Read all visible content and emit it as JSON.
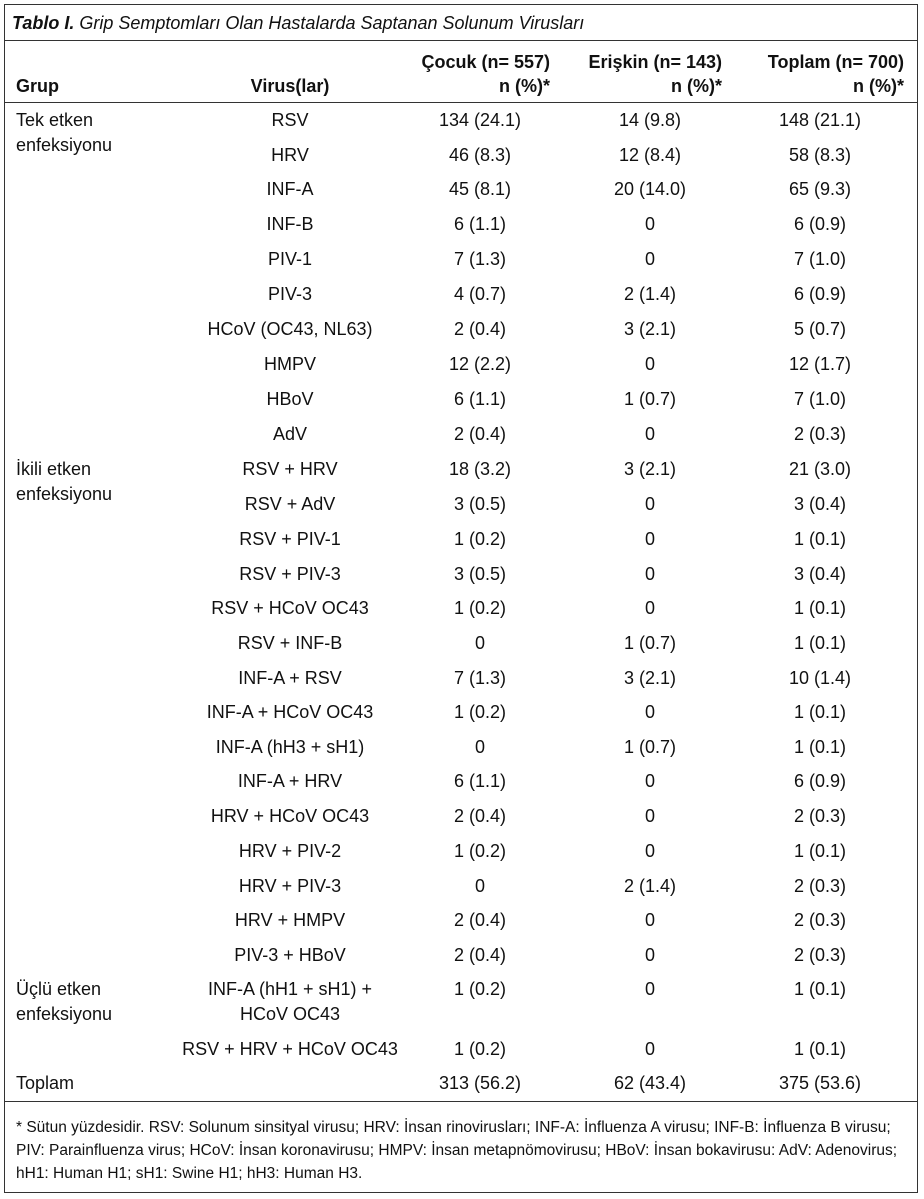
{
  "caption": {
    "label": "Tablo I.",
    "text": "Grip Semptomları Olan Hastalarda Saptanan Solunum Virusları"
  },
  "headers": {
    "grup": "Grup",
    "virus": "Virus(lar)",
    "cocuk_line1": "Çocuk  (n= 557)",
    "cocuk_line2": "n (%)*",
    "eriskin_line1": "Erişkin (n= 143)",
    "eriskin_line2": "n (%)*",
    "toplam_line1": "Toplam (n= 700)",
    "toplam_line2": "n (%)*"
  },
  "groups": [
    {
      "label_lines": [
        "Tek etken",
        "enfeksiyonu"
      ]
    },
    {
      "label_lines": [
        "İkili etken",
        "enfeksiyonu"
      ]
    },
    {
      "label_lines": [
        "Üçlü etken",
        "enfeksiyonu"
      ]
    }
  ],
  "rows": [
    {
      "virus": [
        "RSV"
      ],
      "cocuk": "134 (24.1)",
      "eriskin": "14 (9.8)",
      "toplam": "148 (21.1)"
    },
    {
      "virus": [
        "HRV"
      ],
      "cocuk": "46 (8.3)",
      "eriskin": "12 (8.4)",
      "toplam": "58 (8.3)"
    },
    {
      "virus": [
        "INF-A"
      ],
      "cocuk": "45 (8.1)",
      "eriskin": "20 (14.0)",
      "toplam": "65 (9.3)"
    },
    {
      "virus": [
        "INF-B"
      ],
      "cocuk": "6 (1.1)",
      "eriskin": "0",
      "toplam": "6 (0.9)"
    },
    {
      "virus": [
        "PIV-1"
      ],
      "cocuk": "7 (1.3)",
      "eriskin": "0",
      "toplam": "7 (1.0)"
    },
    {
      "virus": [
        "PIV-3"
      ],
      "cocuk": "4 (0.7)",
      "eriskin": "2 (1.4)",
      "toplam": "6 (0.9)"
    },
    {
      "virus": [
        "HCoV (OC43, NL63)"
      ],
      "cocuk": "2 (0.4)",
      "eriskin": "3 (2.1)",
      "toplam": "5 (0.7)"
    },
    {
      "virus": [
        "HMPV"
      ],
      "cocuk": "12 (2.2)",
      "eriskin": "0",
      "toplam": "12 (1.7)"
    },
    {
      "virus": [
        "HBoV"
      ],
      "cocuk": "6 (1.1)",
      "eriskin": "1 (0.7)",
      "toplam": "7 (1.0)"
    },
    {
      "virus": [
        "AdV"
      ],
      "cocuk": "2 (0.4)",
      "eriskin": "0",
      "toplam": "2 (0.3)"
    },
    {
      "virus": [
        "RSV + HRV"
      ],
      "cocuk": "18 (3.2)",
      "eriskin": "3 (2.1)",
      "toplam": "21 (3.0)"
    },
    {
      "virus": [
        "RSV + AdV"
      ],
      "cocuk": "3 (0.5)",
      "eriskin": "0",
      "toplam": "3 (0.4)"
    },
    {
      "virus": [
        "RSV + PIV-1"
      ],
      "cocuk": "1 (0.2)",
      "eriskin": "0",
      "toplam": "1 (0.1)"
    },
    {
      "virus": [
        "RSV + PIV-3"
      ],
      "cocuk": "3 (0.5)",
      "eriskin": "0",
      "toplam": "3 (0.4)"
    },
    {
      "virus": [
        "RSV + HCoV OC43"
      ],
      "cocuk": "1 (0.2)",
      "eriskin": "0",
      "toplam": "1 (0.1)"
    },
    {
      "virus": [
        "RSV + INF-B"
      ],
      "cocuk": "0",
      "eriskin": "1 (0.7)",
      "toplam": "1 (0.1)"
    },
    {
      "virus": [
        "INF-A + RSV"
      ],
      "cocuk": "7 (1.3)",
      "eriskin": "3 (2.1)",
      "toplam": "10 (1.4)"
    },
    {
      "virus": [
        "INF-A + HCoV OC43"
      ],
      "cocuk": "1 (0.2)",
      "eriskin": "0",
      "toplam": "1 (0.1)"
    },
    {
      "virus": [
        "INF-A (hH3 + sH1)"
      ],
      "cocuk": "0",
      "eriskin": "1 (0.7)",
      "toplam": "1 (0.1)"
    },
    {
      "virus": [
        "INF-A + HRV"
      ],
      "cocuk": "6 (1.1)",
      "eriskin": "0",
      "toplam": "6 (0.9)"
    },
    {
      "virus": [
        "HRV + HCoV OC43"
      ],
      "cocuk": "2 (0.4)",
      "eriskin": "0",
      "toplam": "2 (0.3)"
    },
    {
      "virus": [
        "HRV + PIV-2"
      ],
      "cocuk": "1 (0.2)",
      "eriskin": "0",
      "toplam": "1 (0.1)"
    },
    {
      "virus": [
        "HRV + PIV-3"
      ],
      "cocuk": "0",
      "eriskin": "2 (1.4)",
      "toplam": "2 (0.3)"
    },
    {
      "virus": [
        "HRV + HMPV"
      ],
      "cocuk": "2 (0.4)",
      "eriskin": "0",
      "toplam": "2 (0.3)"
    },
    {
      "virus": [
        "PIV-3 + HBoV"
      ],
      "cocuk": "2 (0.4)",
      "eriskin": "0",
      "toplam": "2 (0.3)"
    },
    {
      "virus": [
        "INF-A (hH1 + sH1) +",
        "HCoV OC43"
      ],
      "cocuk": "1 (0.2)",
      "eriskin": "0",
      "toplam": "1 (0.1)"
    },
    {
      "virus": [
        "RSV + HRV + HCoV OC43"
      ],
      "cocuk": "1 (0.2)",
      "eriskin": "0",
      "toplam": "1 (0.1)"
    }
  ],
  "total": {
    "label": "Toplam",
    "cocuk": "313 (56.2)",
    "eriskin": "62 (43.4)",
    "toplam": "375 (53.6)"
  },
  "footnote": "* Sütun yüzdesidir. RSV: Solunum sinsityal virusu; HRV: İnsan rinovirusları; INF-A: İnfluenza A virusu; INF-B: İnfluenza B virusu; PIV: Parainfluenza virus; HCoV: İnsan koronavirusu; HMPV: İnsan metapnömovirusu; HBoV: İnsan bokavirusu: AdV: Adenovirus; hH1: Human H1; sH1: Swine H1; hH3: Human H3."
}
